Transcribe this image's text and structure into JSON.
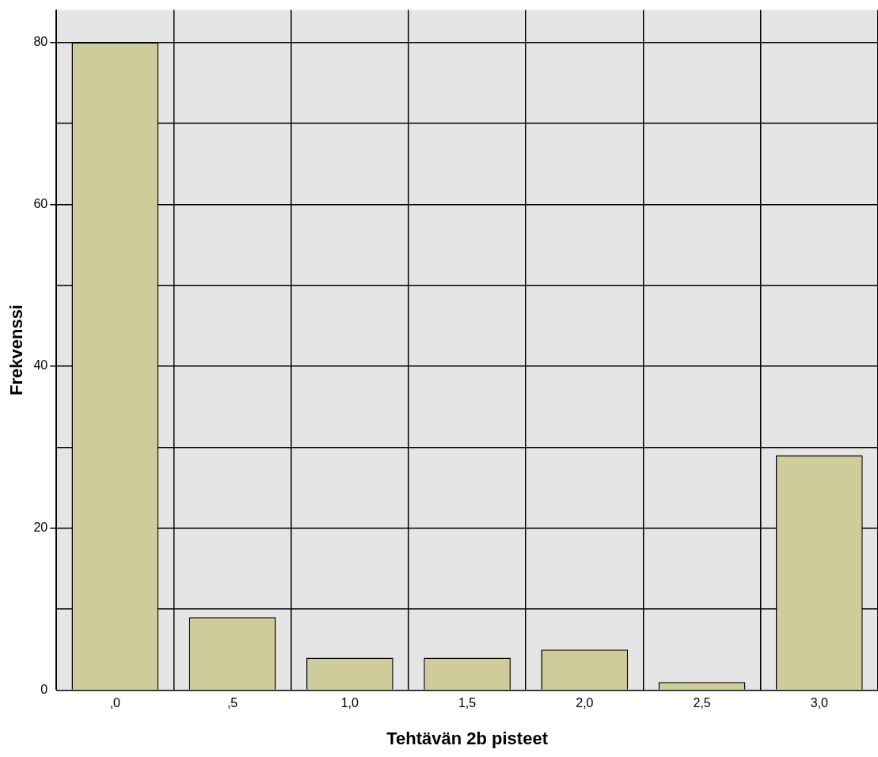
{
  "chart_data": {
    "type": "bar",
    "xlabel": "Tehtävän 2b pisteet",
    "ylabel": "Frekvenssi",
    "categories": [
      ",0",
      ",5",
      "1,0",
      "1,5",
      "2,0",
      "2,5",
      "3,0"
    ],
    "values": [
      80,
      9,
      4,
      4,
      5,
      1,
      29
    ],
    "color": "#cdcc9a",
    "ylim": [
      0,
      84
    ],
    "yticks": [
      0,
      {
        "value": 10,
        "label": null
      },
      20,
      {
        "value": 30,
        "label": null
      },
      40,
      {
        "value": 50,
        "label": null
      },
      60,
      {
        "value": 70,
        "label": null
      },
      80
    ],
    "grid": true,
    "legend": false
  }
}
